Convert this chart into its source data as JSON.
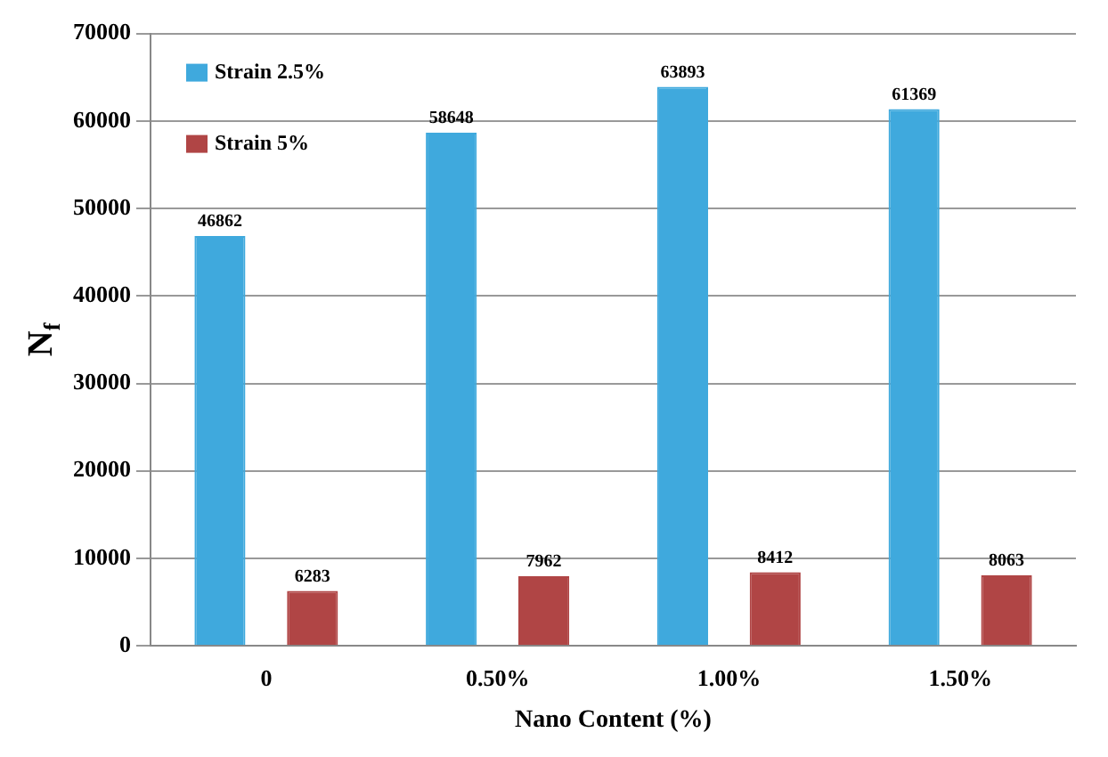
{
  "chart_data": {
    "type": "bar",
    "xlabel": "Nano Content (%)",
    "ylabel": "N$_{f}$",
    "categories": [
      "0",
      "0.50%",
      "1.00%",
      "1.50%"
    ],
    "series": [
      {
        "name": "Strain 2.5%",
        "color": "#3fa9dd",
        "values": [
          46862,
          58648,
          63893,
          61369
        ]
      },
      {
        "name": "Strain 5%",
        "color": "#b04545",
        "values": [
          6283,
          7962,
          8412,
          8063
        ]
      }
    ],
    "ylim": [
      0,
      70000
    ],
    "yticks": [
      0,
      10000,
      20000,
      30000,
      40000,
      50000,
      60000,
      70000
    ],
    "grid": "y",
    "legend": "top left",
    "data_labels": true
  }
}
